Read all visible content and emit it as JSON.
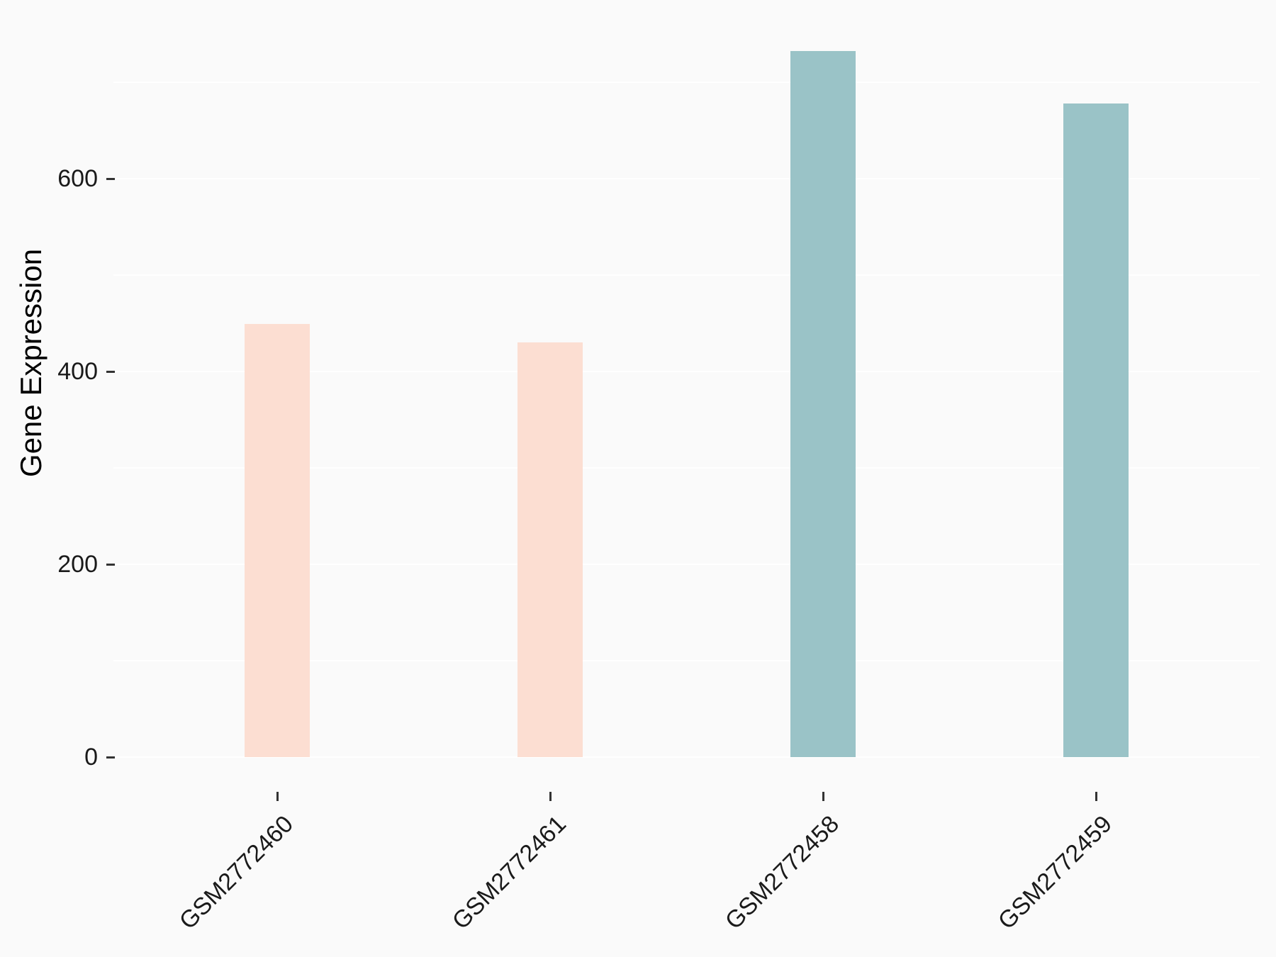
{
  "chart_data": {
    "type": "bar",
    "title": "",
    "xlabel": "",
    "ylabel": "Gene Expression",
    "categories": [
      "GSM2772460",
      "GSM2772461",
      "GSM2772458",
      "GSM2772459"
    ],
    "values": [
      449,
      430,
      732,
      678
    ],
    "bar_colors": [
      "#fcded2",
      "#fcded2",
      "#9ac3c7",
      "#9ac3c7"
    ],
    "groups": [
      "pink",
      "pink",
      "teal",
      "teal"
    ],
    "ylim": [
      0,
      770
    ],
    "yticks": [
      0,
      200,
      400,
      600
    ],
    "ytick_labels": [
      "0",
      "200",
      "400",
      "600"
    ],
    "minor_gridlines": [
      100,
      300,
      500,
      700
    ],
    "grid": "horizontal major and minor, white lines on light gray panel",
    "legend_position": "none",
    "x_label_rotation_deg": 45
  },
  "colors": {
    "background": "#fafafa",
    "panel_background": "#fafafa",
    "gridline": "#ffffff",
    "tick_mark": "#333333",
    "tick_label_text": "#1a1a1a",
    "axis_title_text": "#000000",
    "bar_pink": "#fcded2",
    "bar_teal": "#9ac3c7"
  }
}
